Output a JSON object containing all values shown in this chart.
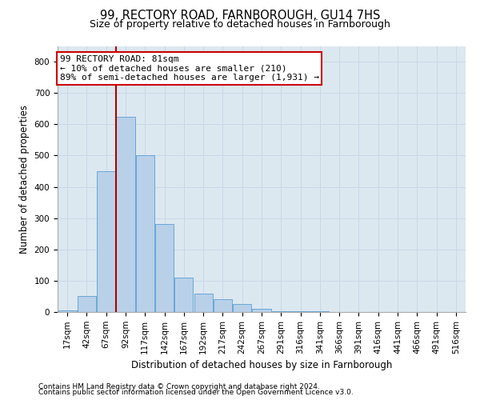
{
  "title": "99, RECTORY ROAD, FARNBOROUGH, GU14 7HS",
  "subtitle": "Size of property relative to detached houses in Farnborough",
  "xlabel": "Distribution of detached houses by size in Farnborough",
  "ylabel": "Number of detached properties",
  "bar_color": "#b8d0e8",
  "bar_edge_color": "#5a9fd4",
  "bins": [
    "17sqm",
    "42sqm",
    "67sqm",
    "92sqm",
    "117sqm",
    "142sqm",
    "167sqm",
    "192sqm",
    "217sqm",
    "242sqm",
    "267sqm",
    "291sqm",
    "316sqm",
    "341sqm",
    "366sqm",
    "391sqm",
    "416sqm",
    "441sqm",
    "466sqm",
    "491sqm",
    "516sqm"
  ],
  "values": [
    5,
    50,
    450,
    625,
    500,
    280,
    110,
    60,
    40,
    25,
    10,
    3,
    2,
    2,
    0,
    0,
    0,
    0,
    1,
    0,
    0
  ],
  "property_label": "99 RECTORY ROAD: 81sqm",
  "annotation_line1": "← 10% of detached houses are smaller (210)",
  "annotation_line2": "89% of semi-detached houses are larger (1,931) →",
  "annotation_box_color": "#ffffff",
  "annotation_box_edge_color": "#cc0000",
  "vline_color": "#aa0000",
  "grid_color": "#c8d8e8",
  "background_color": "#dce8f0",
  "footer1": "Contains HM Land Registry data © Crown copyright and database right 2024.",
  "footer2": "Contains public sector information licensed under the Open Government Licence v3.0.",
  "ylim": [
    0,
    850
  ],
  "title_fontsize": 10.5,
  "subtitle_fontsize": 9,
  "ylabel_fontsize": 8.5,
  "xlabel_fontsize": 8.5,
  "tick_fontsize": 7.5,
  "annot_fontsize": 8,
  "footer_fontsize": 6.5
}
